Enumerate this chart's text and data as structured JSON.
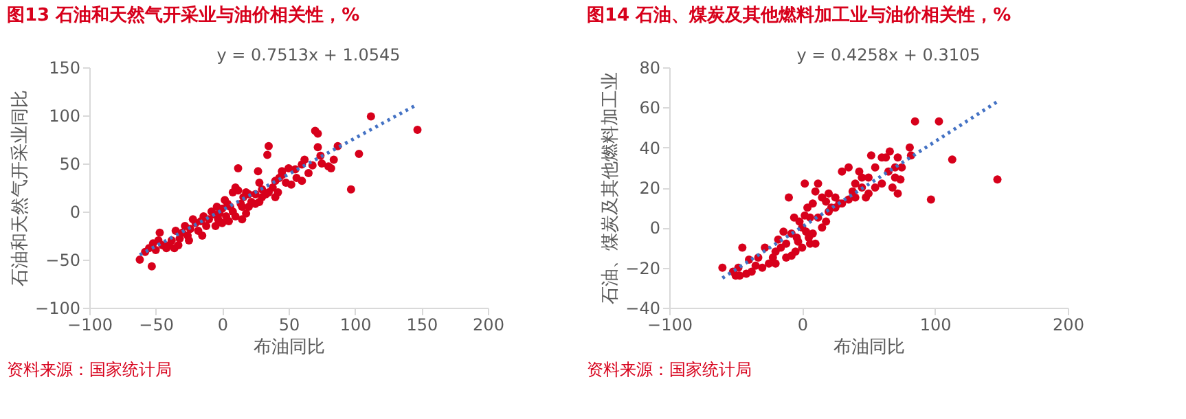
{
  "chart_data": [
    {
      "type": "scatter",
      "title": "图13  石油和天然气开采业与油价相关性，%",
      "xlabel": "布油同比",
      "ylabel": "石油和天然气开采业同比",
      "xlim": [
        -100,
        200
      ],
      "xticks": [
        -100,
        -50,
        0,
        50,
        100,
        150,
        200
      ],
      "ylim": [
        -100,
        150
      ],
      "yticks": [
        -100,
        -50,
        0,
        50,
        100,
        150
      ],
      "grid": false,
      "annotations": [
        "y = 0.7513x + 1.0545",
        "资料来源：国家统计局"
      ],
      "series": [
        {
          "type": "scatter",
          "marker": "circle",
          "color": "#d7001b",
          "x": [
            147,
            112,
            103,
            97,
            -62,
            -53,
            70,
            72,
            35,
            34,
            12,
            27,
            87,
            84,
            82,
            80,
            74,
            72,
            62,
            60,
            55,
            50,
            45,
            43,
            40,
            38,
            33,
            30,
            28,
            25,
            22,
            20,
            18,
            16,
            14,
            12,
            10,
            8,
            6,
            4,
            2,
            0,
            -2,
            -4,
            -6,
            -8,
            -10,
            -12,
            -14,
            -16,
            -18,
            -20,
            -22,
            -24,
            -26,
            -28,
            -30,
            -32,
            -35,
            -38,
            -40,
            -42,
            -45,
            -47,
            -50,
            -52,
            -55,
            -58,
            -36,
            -33,
            -48,
            5,
            10,
            15,
            0,
            -5,
            20,
            25,
            30,
            35,
            42,
            45,
            48,
            52,
            56,
            65,
            68,
            75,
            15,
            8,
            3,
            -3,
            60,
            40,
            28,
            18,
            -15,
            -25
          ],
          "values": [
            85,
            99,
            60,
            23,
            -50,
            -57,
            84,
            81,
            68,
            59,
            45,
            42,
            68,
            54,
            45,
            47,
            58,
            67,
            54,
            49,
            44,
            45,
            42,
            35,
            32,
            25,
            18,
            23,
            10,
            8,
            10,
            18,
            20,
            15,
            8,
            22,
            25,
            20,
            5,
            8,
            12,
            3,
            -2,
            5,
            -3,
            0,
            -8,
            -15,
            -5,
            -10,
            -20,
            -12,
            -8,
            -18,
            -25,
            -15,
            -22,
            -28,
            -20,
            -30,
            -35,
            -38,
            -35,
            -22,
            -40,
            -33,
            -38,
            -42,
            -38,
            -35,
            -30,
            -10,
            -5,
            -8,
            -12,
            -15,
            5,
            18,
            15,
            20,
            20,
            38,
            30,
            28,
            35,
            40,
            48,
            50,
            5,
            0,
            -5,
            -8,
            32,
            15,
            30,
            -2,
            -25,
            -30
          ]
        },
        {
          "type": "line",
          "color": "#4472c4",
          "line_style": "dotted",
          "x": [
            -62,
            145
          ],
          "values": [
            -45,
            110
          ]
        }
      ]
    },
    {
      "type": "scatter",
      "title": "图14  石油、煤炭及其他燃料加工业与油价相关性，%",
      "xlabel": "布油同比",
      "ylabel": "石油、煤炭及其他燃料加工业",
      "xlim": [
        -100,
        200
      ],
      "xticks": [
        -100,
        0,
        100,
        200
      ],
      "ylim": [
        -40,
        80
      ],
      "yticks": [
        -40,
        -20,
        0,
        20,
        40,
        60,
        80
      ],
      "grid": false,
      "annotations": [
        "y = 0.4258x + 0.3105",
        "资料来源：国家统计局"
      ],
      "series": [
        {
          "type": "scatter",
          "marker": "circle",
          "color": "#d7001b",
          "x": [
            147,
            113,
            103,
            85,
            97,
            81,
            82,
            72,
            70,
            72,
            74,
            66,
            63,
            60,
            55,
            52,
            50,
            48,
            45,
            43,
            40,
            38,
            35,
            30,
            28,
            25,
            22,
            20,
            18,
            15,
            12,
            10,
            8,
            6,
            4,
            2,
            0,
            -2,
            -4,
            -6,
            -8,
            -10,
            -12,
            -14,
            -16,
            -18,
            -20,
            -22,
            -25,
            -28,
            -30,
            -33,
            -35,
            -38,
            -40,
            -42,
            -45,
            -47,
            -50,
            -52,
            -60,
            -48,
            5,
            10,
            15,
            0,
            -5,
            12,
            20,
            30,
            40,
            45,
            55,
            60,
            65,
            70,
            75,
            8,
            3,
            -3,
            -8,
            -12,
            -20,
            25,
            35,
            50,
            68,
            18,
            2,
            6
          ],
          "values": [
            24,
            34,
            53,
            53,
            14,
            40,
            36,
            35,
            30,
            17,
            24,
            38,
            35,
            35,
            30,
            36,
            17,
            15,
            25,
            28,
            22,
            18,
            30,
            28,
            12,
            15,
            10,
            17,
            13,
            15,
            22,
            18,
            12,
            5,
            10,
            6,
            0,
            3,
            -5,
            5,
            -3,
            15,
            -8,
            -2,
            -10,
            -6,
            -12,
            -15,
            -18,
            -10,
            -20,
            -15,
            -19,
            -22,
            -16,
            -23,
            -10,
            -24,
            -24,
            -22,
            -20,
            -20,
            -5,
            -8,
            0,
            -10,
            -12,
            5,
            8,
            12,
            15,
            20,
            20,
            22,
            28,
            25,
            30,
            -3,
            -2,
            -7,
            -14,
            -15,
            -18,
            10,
            14,
            25,
            20,
            3,
            22,
            -8
          ]
        },
        {
          "type": "line",
          "color": "#4472c4",
          "line_style": "dotted",
          "x": [
            -60,
            147
          ],
          "values": [
            -25.2,
            62.9
          ]
        }
      ]
    }
  ]
}
